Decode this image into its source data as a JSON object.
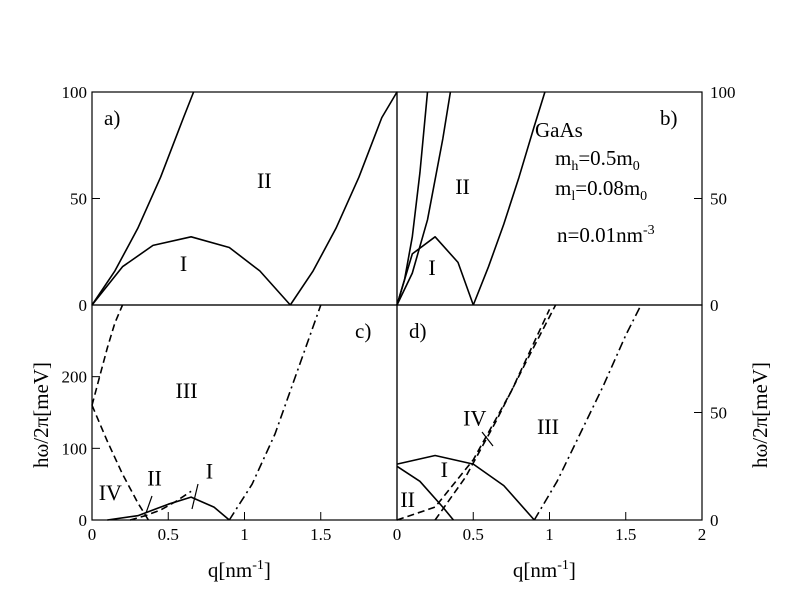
{
  "chart_data": [
    {
      "panel": "a",
      "type": "line",
      "label": "a)",
      "xlim": [
        0,
        2
      ],
      "ylim": [
        0,
        100
      ],
      "ylabel_side": "left",
      "ticks_y": [
        "0",
        "50",
        "100"
      ],
      "regions": [
        {
          "label": "I",
          "x": 0.6,
          "y": 16
        },
        {
          "label": "II",
          "x": 1.13,
          "y": 55
        }
      ],
      "series": [
        {
          "style": "solid",
          "x": [
            0,
            0.15,
            0.3,
            0.45,
            0.6,
            0.666
          ],
          "y": [
            0,
            16,
            36,
            60,
            88,
            100
          ]
        },
        {
          "style": "solid",
          "x": [
            0,
            0.2,
            0.4,
            0.65,
            0.9,
            1.1,
            1.3
          ],
          "y": [
            0,
            18,
            28,
            32,
            27,
            16,
            0
          ]
        },
        {
          "style": "solid",
          "x": [
            1.3,
            1.45,
            1.6,
            1.75,
            1.9,
            2.0
          ],
          "y": [
            0,
            16,
            36,
            60,
            88,
            100
          ]
        }
      ]
    },
    {
      "panel": "b",
      "type": "line",
      "label": "b)",
      "xlim": [
        0,
        2
      ],
      "ylim": [
        0,
        100
      ],
      "ylabel_side": "right",
      "ticks_y": [
        "0",
        "50",
        "100"
      ],
      "annotation": {
        "material": "GaAs",
        "mh": "m",
        "mh_sub": "h",
        "mh_val": "=0.5m",
        "mh_val_sub": "0",
        "ml": "m",
        "ml_sub": "l",
        "ml_val": "=0.08m",
        "ml_val_sub": "0",
        "n": "n=0.01nm",
        "n_sup": "-3"
      },
      "regions": [
        {
          "label": "I",
          "x": 0.23,
          "y": 14
        },
        {
          "label": "II",
          "x": 0.43,
          "y": 52
        }
      ],
      "series": [
        {
          "style": "solid",
          "x": [
            0,
            0.05,
            0.1,
            0.15,
            0.2
          ],
          "y": [
            0,
            12,
            32,
            62,
            100
          ]
        },
        {
          "style": "solid",
          "x": [
            0,
            0.1,
            0.25,
            0.4,
            0.5
          ],
          "y": [
            0,
            24,
            32,
            20,
            0
          ]
        },
        {
          "style": "solid",
          "x": [
            0,
            0.1,
            0.2,
            0.3,
            0.35
          ],
          "y": [
            0,
            15,
            40,
            78,
            100
          ]
        },
        {
          "style": "solid",
          "x": [
            0.5,
            0.6,
            0.7,
            0.8,
            0.9,
            0.97
          ],
          "y": [
            0,
            18,
            38,
            60,
            84,
            100
          ]
        }
      ]
    },
    {
      "panel": "c",
      "type": "line",
      "label": "c)",
      "xlim": [
        0,
        2
      ],
      "ylim": [
        0,
        300
      ],
      "xlabel": "q[nm",
      "xlabel_sup": "-1",
      "xlabel_close": "]",
      "ylabel_side": "left",
      "ticks_x": [
        "0",
        "0.5",
        "1",
        "1.5"
      ],
      "ticks_y": [
        "0",
        "100",
        "200"
      ],
      "regions": [
        {
          "label": "I",
          "x": 0.77,
          "y": 58
        },
        {
          "label": "II",
          "x": 0.41,
          "y": 48
        },
        {
          "label": "III",
          "x": 0.62,
          "y": 170
        },
        {
          "label": "IV",
          "x": 0.12,
          "y": 28
        }
      ],
      "series": [
        {
          "style": "dashed",
          "x": [
            0,
            0.05,
            0.1,
            0.15,
            0.2
          ],
          "y": [
            160,
            200,
            240,
            275,
            300
          ]
        },
        {
          "style": "dashed",
          "x": [
            0,
            0.1,
            0.2,
            0.3,
            0.37
          ],
          "y": [
            160,
            110,
            64,
            24,
            0
          ]
        },
        {
          "style": "solid",
          "x": [
            0.1,
            0.3,
            0.5,
            0.65,
            0.8,
            0.9
          ],
          "y": [
            0,
            6,
            22,
            32,
            18,
            0
          ]
        },
        {
          "style": "dashed",
          "x": [
            0.25,
            0.35,
            0.45,
            0.55,
            0.65
          ],
          "y": [
            0,
            6,
            14,
            26,
            40
          ]
        },
        {
          "style": "dashdot",
          "x": [
            0.9,
            1.05,
            1.2,
            1.35,
            1.5
          ],
          "y": [
            0,
            50,
            120,
            210,
            300
          ]
        }
      ]
    },
    {
      "panel": "d",
      "type": "line",
      "label": "d)",
      "xlim": [
        0,
        2
      ],
      "ylim": [
        0,
        100
      ],
      "xlabel": "q[nm",
      "xlabel_sup": "-1",
      "xlabel_close": "]",
      "ylabel_side": "right",
      "ticks_x": [
        "0",
        "0.5",
        "1",
        "1.5",
        "2"
      ],
      "ticks_y": [
        "0",
        "50"
      ],
      "regions": [
        {
          "label": "I",
          "x": 0.31,
          "y": 20
        },
        {
          "label": "II",
          "x": 0.07,
          "y": 6
        },
        {
          "label": "III",
          "x": 0.99,
          "y": 40
        },
        {
          "label": "IV",
          "x": 0.51,
          "y": 44
        }
      ],
      "series": [
        {
          "style": "solid",
          "x": [
            0,
            0.25,
            0.5,
            0.7,
            0.9
          ],
          "y": [
            26,
            30,
            26,
            16,
            0
          ]
        },
        {
          "style": "solid",
          "x": [
            0,
            0.15,
            0.3,
            0.37
          ],
          "y": [
            25,
            18,
            6,
            0
          ]
        },
        {
          "style": "dashed",
          "x": [
            0,
            0.25,
            0.5,
            0.75,
            1.0
          ],
          "y": [
            0,
            6,
            28,
            60,
            98
          ]
        },
        {
          "style": "dashed",
          "x": [
            0.25,
            0.45,
            0.65,
            0.85,
            1.04
          ],
          "y": [
            0,
            20,
            46,
            74,
            100
          ]
        },
        {
          "style": "dashdot",
          "x": [
            0.9,
            1.05,
            1.2,
            1.35,
            1.5,
            1.6
          ],
          "y": [
            0,
            18,
            40,
            62,
            86,
            100
          ]
        }
      ]
    }
  ],
  "labels": {
    "ylabel_left": "hω/2π[meV]",
    "ylabel_right": "hω/2π[meV]"
  }
}
